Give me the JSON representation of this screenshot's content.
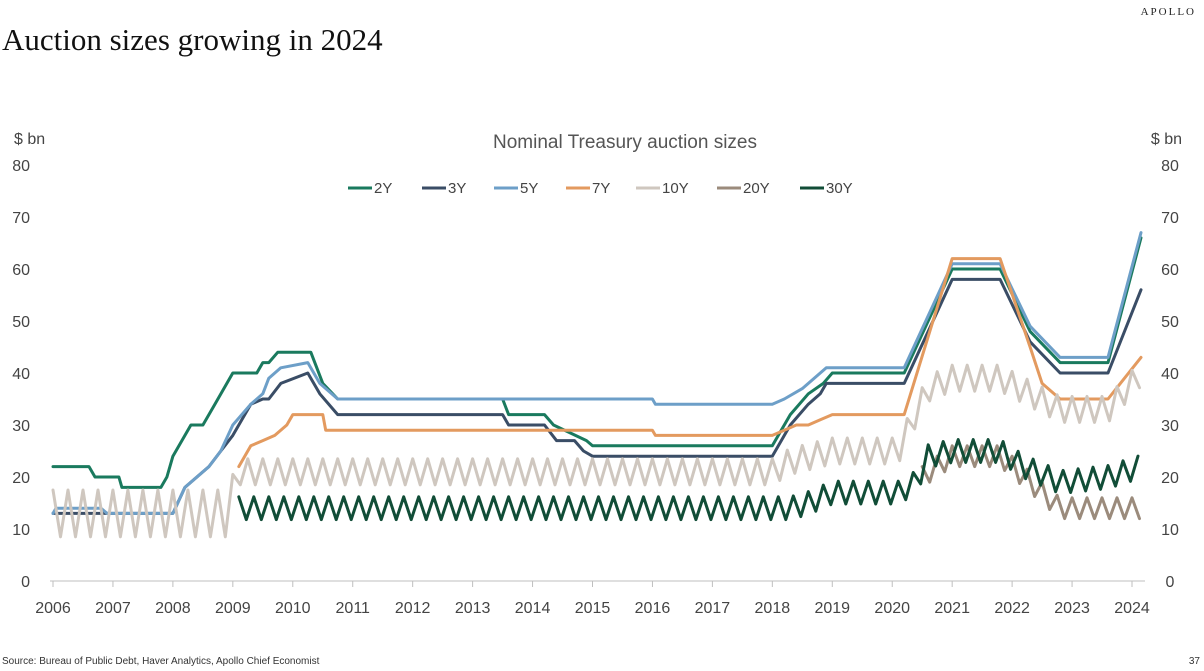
{
  "brand": "APOLLO",
  "slide_title": "Auction sizes growing in 2024",
  "source": "Source: Bureau of Public Debt, Haver Analytics, Apollo Chief Economist",
  "page_number": "37",
  "chart_data": {
    "type": "line",
    "title": "Nominal Treasury auction sizes",
    "ylabel_left": "$ bn",
    "ylabel_right": "$ bn",
    "ylim": [
      0,
      80
    ],
    "yticks": [
      0,
      10,
      20,
      30,
      40,
      50,
      60,
      70,
      80
    ],
    "xlim": [
      2006,
      2024.3
    ],
    "xticks": [
      2006,
      2007,
      2008,
      2009,
      2010,
      2011,
      2012,
      2013,
      2014,
      2015,
      2016,
      2017,
      2018,
      2019,
      2020,
      2021,
      2022,
      2023,
      2024
    ],
    "legend_position": "top-center",
    "grid": false,
    "series": [
      {
        "name": "2Y",
        "color": "#1a7a5e",
        "x": [
          2006,
          2006.6,
          2006.7,
          2007.1,
          2007.15,
          2007.8,
          2007.9,
          2008.0,
          2008.3,
          2008.5,
          2008.6,
          2008.7,
          2009.0,
          2009.4,
          2009.5,
          2009.6,
          2009.75,
          2010.3,
          2010.5,
          2010.75,
          2013.5,
          2013.6,
          2014.2,
          2014.35,
          2014.9,
          2015.0,
          2018.0,
          2018.3,
          2018.6,
          2018.85,
          2019.0,
          2020.2,
          2021.0,
          2021.1,
          2021.8,
          2022.3,
          2022.8,
          2023.6,
          2024.15
        ],
        "y": [
          22,
          22,
          20,
          20,
          18,
          18,
          20,
          24,
          30,
          30,
          32,
          34,
          40,
          40,
          42,
          42,
          44,
          44,
          38,
          35,
          35,
          32,
          32,
          30,
          27,
          26,
          26,
          32,
          36,
          38,
          40,
          40,
          60,
          60,
          60,
          48,
          42,
          42,
          66
        ]
      },
      {
        "name": "3Y",
        "color": "#3a4d66",
        "x": [
          2006,
          2006.8,
          2006.9,
          2008.0,
          2008.2,
          2008.4,
          2008.6,
          2008.8,
          2009.0,
          2009.3,
          2009.5,
          2009.6,
          2009.8,
          2010.25,
          2010.45,
          2010.75,
          2013.5,
          2013.6,
          2014.2,
          2014.4,
          2014.7,
          2014.85,
          2015.0,
          2018.0,
          2018.3,
          2018.6,
          2018.8,
          2018.9,
          2020.2,
          2021.0,
          2021.1,
          2021.8,
          2022.3,
          2022.8,
          2023.6,
          2024.15
        ],
        "y": [
          13,
          13,
          13,
          13,
          18,
          20,
          22,
          25,
          28,
          34,
          35,
          35,
          38,
          40,
          36,
          32,
          32,
          30,
          30,
          27,
          27,
          25,
          24,
          24,
          30,
          34,
          36,
          38,
          38,
          58,
          58,
          58,
          46,
          40,
          40,
          56
        ]
      },
      {
        "name": "5Y",
        "color": "#6d9fc8",
        "x": [
          2006,
          2006.05,
          2006.8,
          2006.9,
          2008.0,
          2008.2,
          2008.4,
          2008.6,
          2008.8,
          2009.0,
          2009.3,
          2009.5,
          2009.6,
          2009.8,
          2010.25,
          2010.45,
          2010.75,
          2016.0,
          2016.05,
          2018.0,
          2018.2,
          2018.5,
          2018.9,
          2020.2,
          2021.0,
          2021.1,
          2021.8,
          2022.3,
          2022.8,
          2023.6,
          2024.15
        ],
        "y": [
          13,
          14,
          14,
          13,
          13,
          18,
          20,
          22,
          25,
          30,
          34,
          36,
          39,
          41,
          42,
          38,
          35,
          35,
          34,
          34,
          35,
          37,
          41,
          41,
          61,
          61,
          61,
          49,
          43,
          43,
          67
        ]
      },
      {
        "name": "7Y",
        "color": "#e39a5f",
        "x": [
          2009.1,
          2009.3,
          2009.5,
          2009.7,
          2009.9,
          2010.0,
          2010.5,
          2010.55,
          2016.0,
          2016.05,
          2018.0,
          2018.2,
          2018.4,
          2018.6,
          2018.8,
          2019.0,
          2020.2,
          2021.0,
          2021.1,
          2021.8,
          2022.3,
          2022.5,
          2022.8,
          2023.6,
          2024.15
        ],
        "y": [
          22,
          26,
          27,
          28,
          30,
          32,
          32,
          29,
          29,
          28,
          28,
          29,
          30,
          30,
          31,
          32,
          32,
          62,
          62,
          62,
          45,
          38,
          35,
          35,
          43
        ]
      },
      {
        "name": "10Y",
        "color": "#cfc7bf",
        "style": "zigzag",
        "x": [
          2006,
          2008.9,
          2009.1,
          2018.0,
          2018.3,
          2019.0,
          2020.1,
          2020.3,
          2020.6,
          2021.0,
          2021.8,
          2022.3,
          2022.8,
          2023.6,
          2024.0,
          2024.15
        ],
        "y": [
          13,
          13,
          21,
          21,
          23,
          25,
          25,
          30,
          37,
          39,
          39,
          36,
          33,
          33,
          38,
          40
        ],
        "amplitude": [
          4.5,
          4.5,
          2.5,
          2.5,
          2.5,
          2.5,
          2.5,
          2.5,
          2.5,
          2.5,
          2.5,
          2.5,
          2.5,
          2.5,
          2.5,
          2.5
        ]
      },
      {
        "name": "20Y",
        "color": "#9b8b7c",
        "style": "zigzag",
        "x": [
          2020.5,
          2021.0,
          2021.8,
          2022.2,
          2022.5,
          2022.8,
          2023.6,
          2024.15
        ],
        "y": [
          20,
          24,
          24,
          20,
          17,
          14,
          14,
          14
        ],
        "amplitude": [
          2,
          2,
          2,
          2,
          2,
          2,
          2,
          2
        ]
      },
      {
        "name": "30Y",
        "color": "#114d37",
        "style": "zigzag",
        "x": [
          2009.1,
          2018.0,
          2018.3,
          2018.6,
          2019.0,
          2020.1,
          2020.4,
          2020.6,
          2021.0,
          2021.8,
          2022.2,
          2022.8,
          2023.6,
          2024.15
        ],
        "y": [
          14,
          14,
          14,
          15,
          17,
          17,
          19,
          24,
          25,
          25,
          22,
          19,
          20,
          22
        ],
        "amplitude": [
          2.2,
          2.2,
          2.2,
          2.2,
          2.2,
          2.2,
          2.2,
          2.2,
          2.2,
          2.2,
          2.2,
          2.2,
          2.2,
          2.2
        ]
      }
    ]
  }
}
